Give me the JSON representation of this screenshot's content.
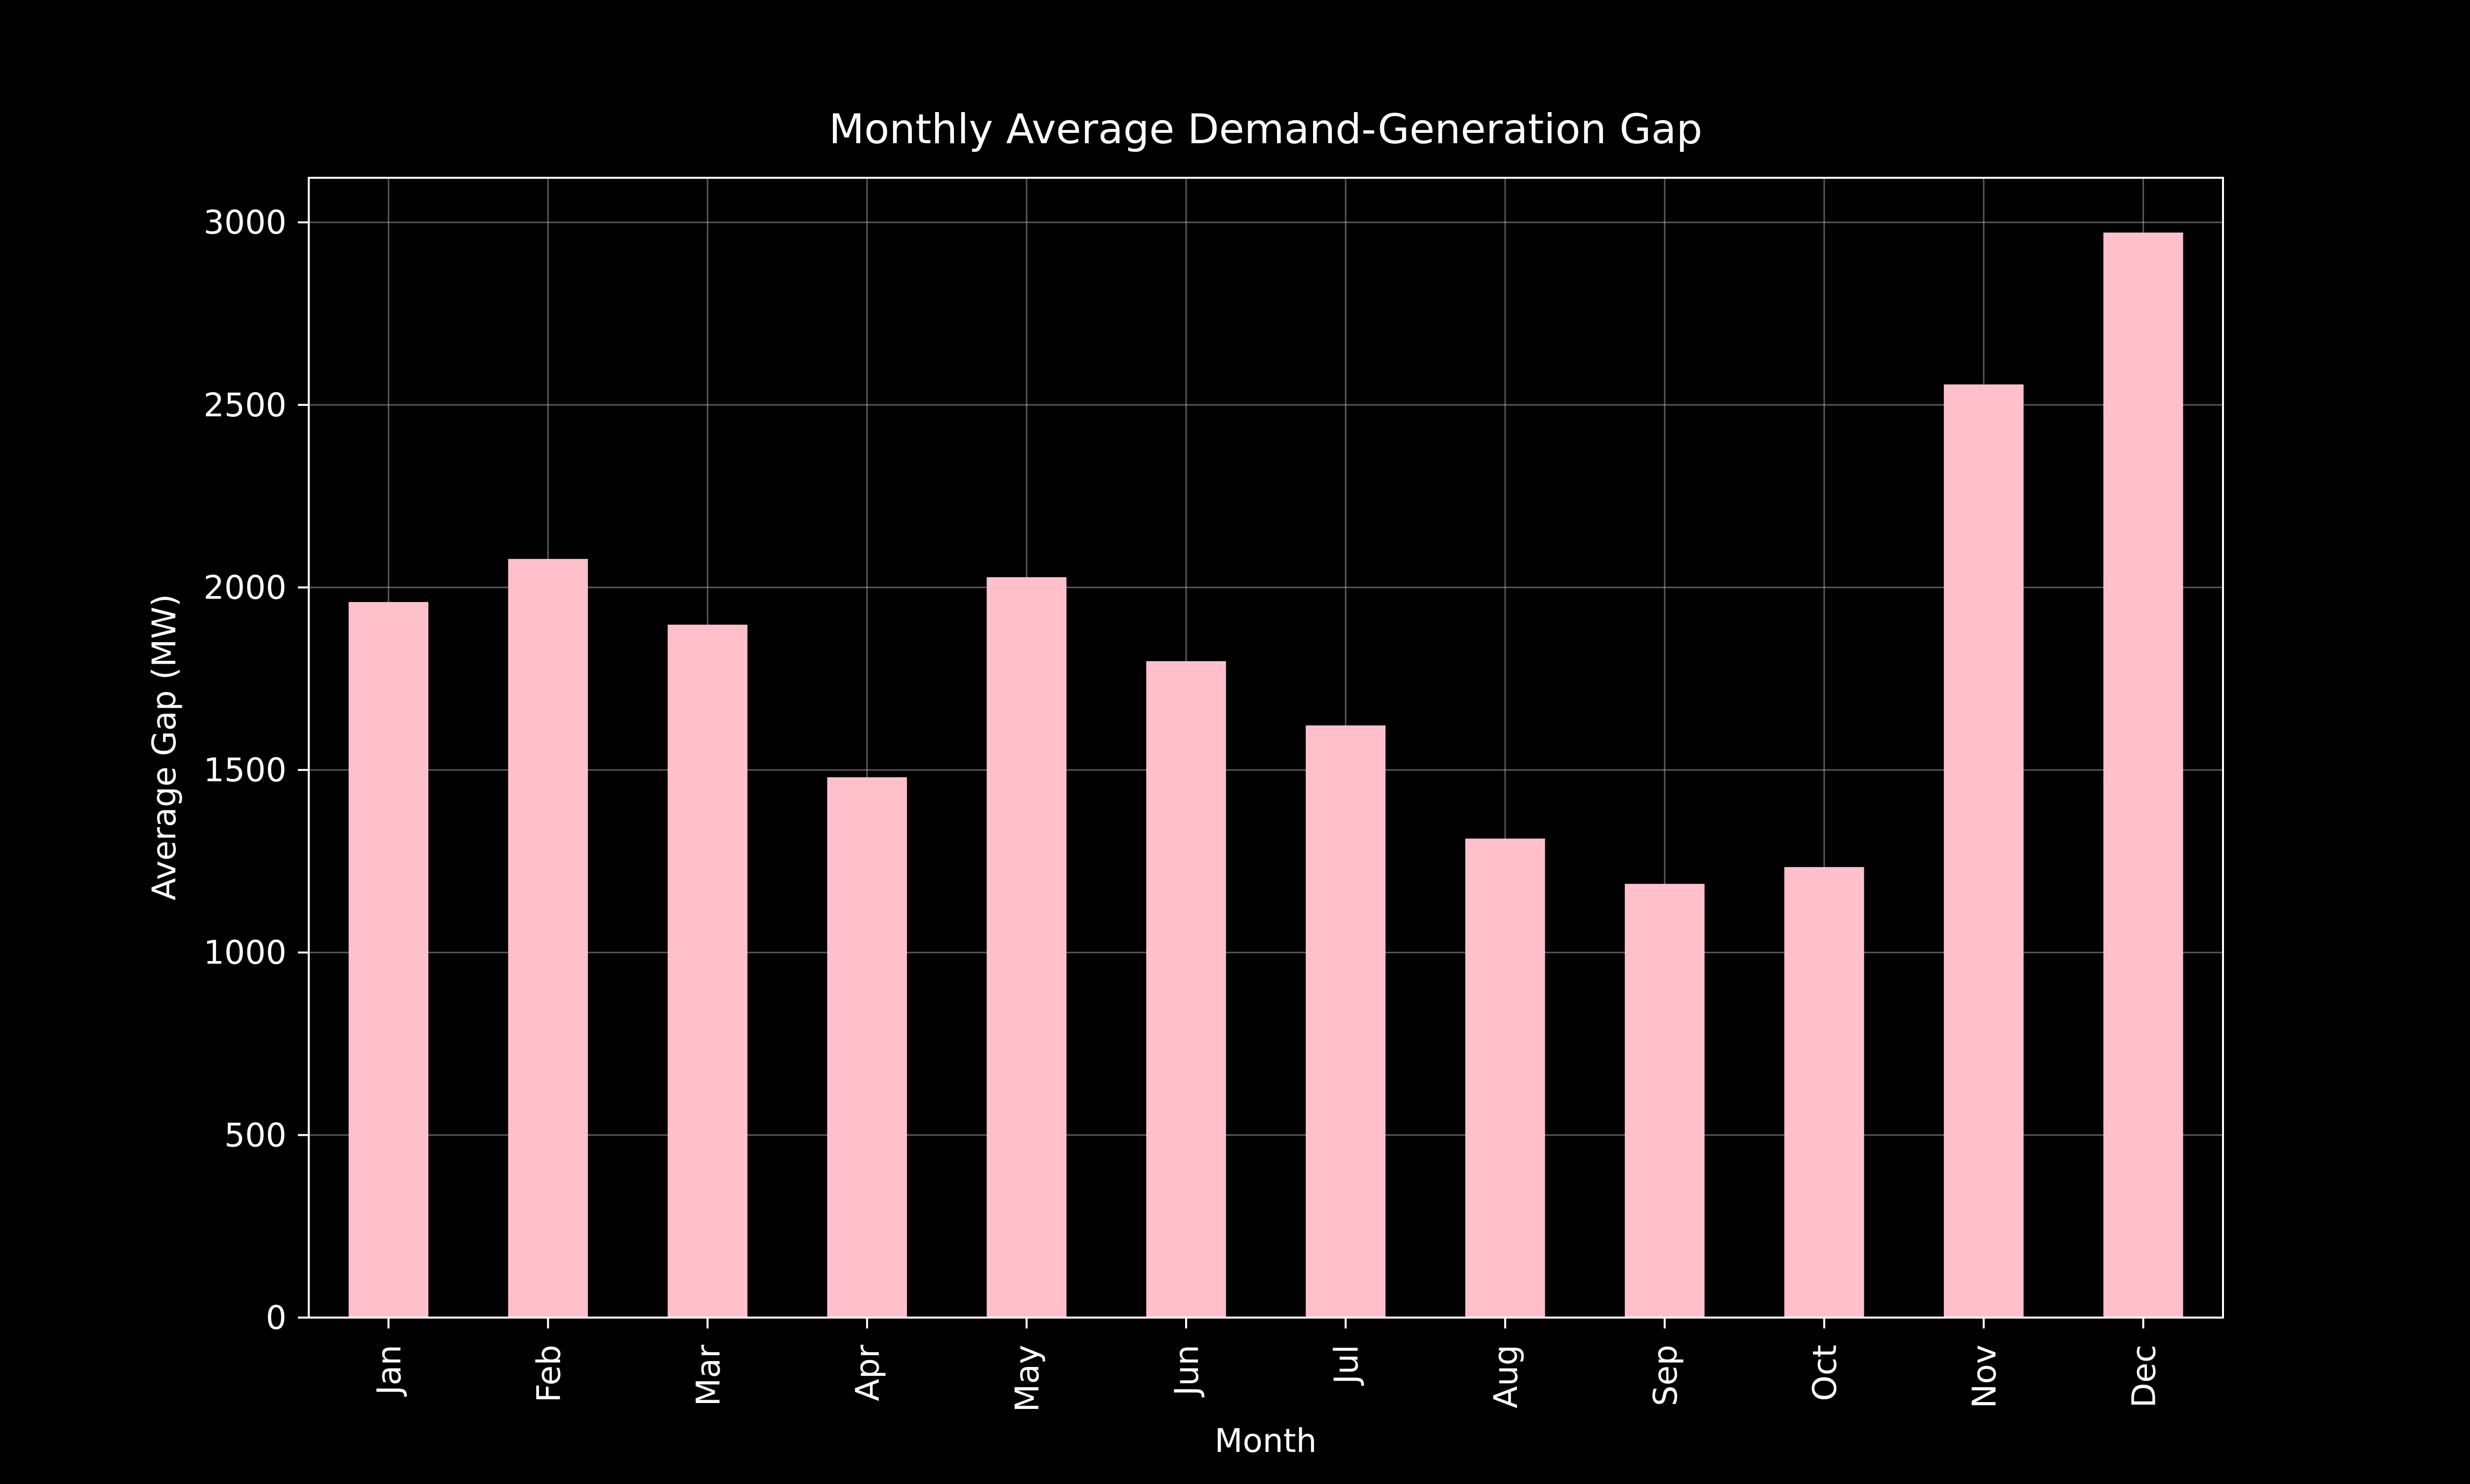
{
  "chart_data": {
    "type": "bar",
    "title": "Monthly Average Demand-Generation Gap",
    "xlabel": "Month",
    "ylabel": "Average Gap (MW)",
    "categories": [
      "Jan",
      "Feb",
      "Mar",
      "Apr",
      "May",
      "Jun",
      "Jul",
      "Aug",
      "Sep",
      "Oct",
      "Nov",
      "Dec"
    ],
    "values": [
      1960,
      2078,
      1898,
      1480,
      2028,
      1798,
      1622,
      1312,
      1188,
      1234,
      2556,
      2972
    ],
    "ylim": [
      0,
      3122
    ],
    "yticks": [
      0,
      500,
      1000,
      1500,
      2000,
      2500,
      3000
    ],
    "grid": true,
    "colors": {
      "background": "#000000",
      "bar": "#ffc0cb",
      "axis": "#ffffff",
      "grid": "#b0b0b0",
      "text": "#ffffff"
    }
  }
}
